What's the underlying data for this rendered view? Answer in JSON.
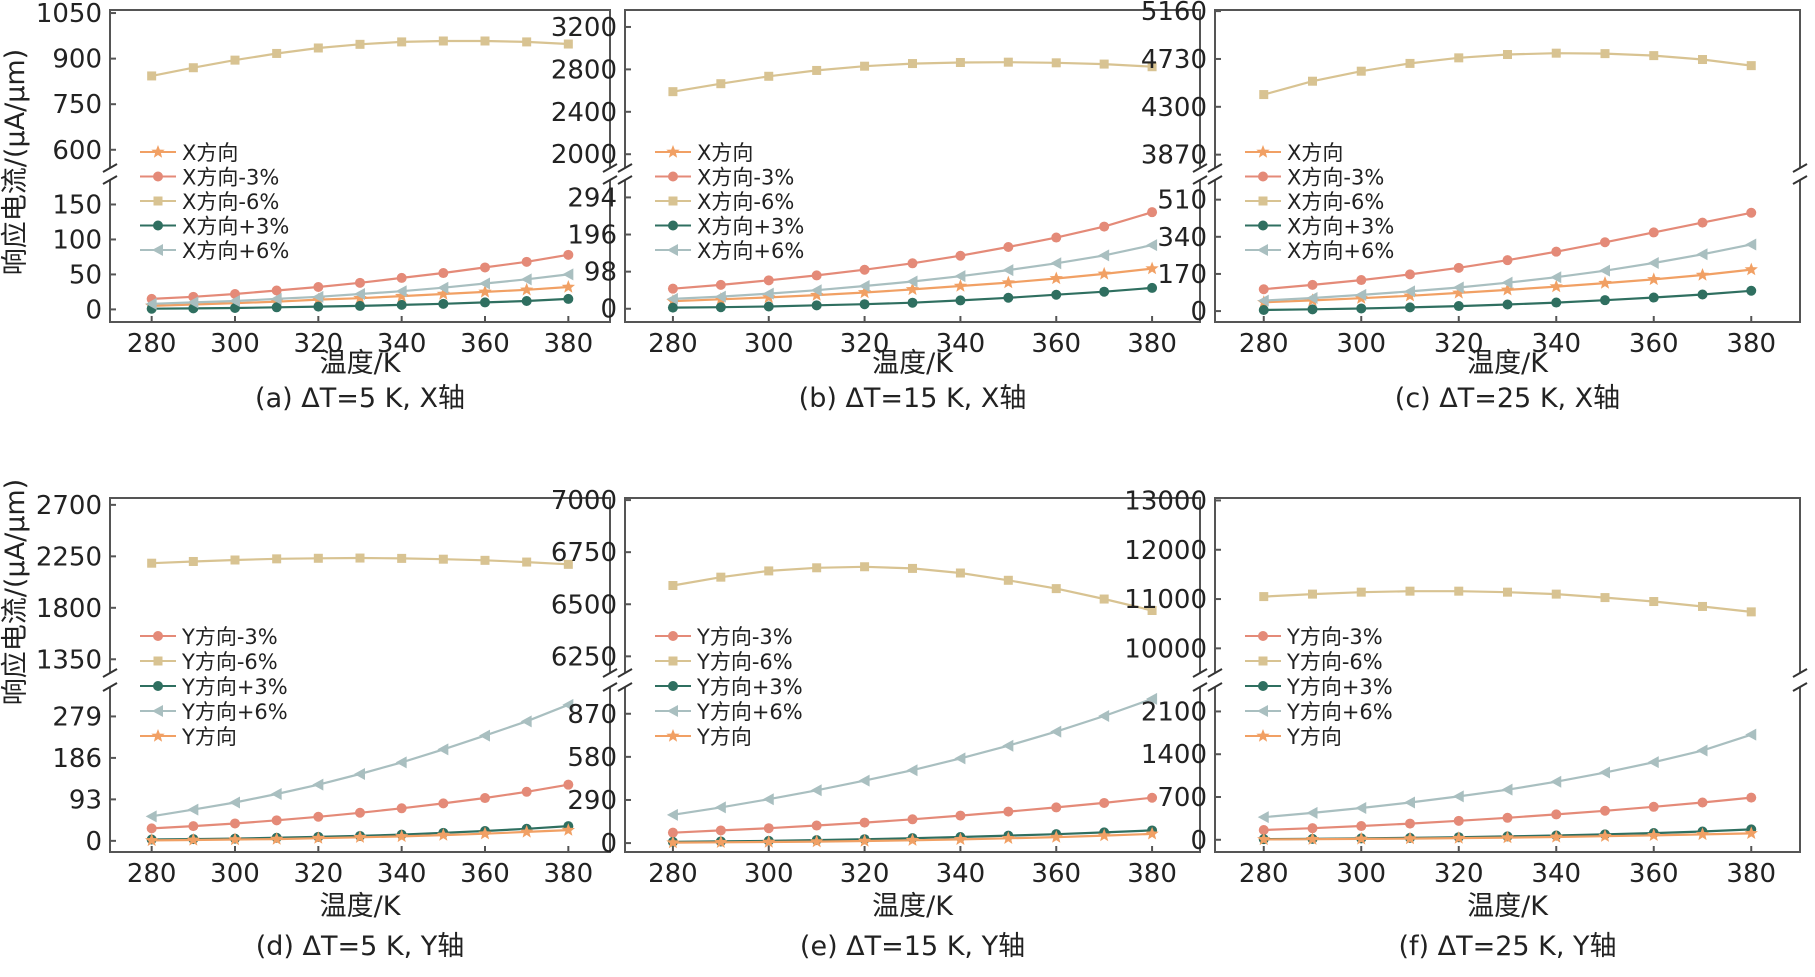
{
  "figure": {
    "ylabel_top": "响应电流/(μA/μm)",
    "ylabel_bottom": "响应电流/(μA/μm)",
    "xlabel": "温度/K"
  },
  "colors": {
    "base": "#f1a064",
    "minus3": "#e48a78",
    "minus6": "#d8c392",
    "plus3": "#2f6f60",
    "plus6": "#a9bfc0"
  },
  "chart_data": [
    {
      "type": "line",
      "caption": "(a) ΔT=5 K, X轴",
      "xlabel": "温度/K",
      "ylabel": "响应电流/(μA/μm)",
      "xlim": [
        270,
        390
      ],
      "x": [
        280,
        290,
        300,
        310,
        320,
        330,
        340,
        350,
        360,
        370,
        380
      ],
      "xticks": [
        280,
        300,
        320,
        340,
        360,
        380
      ],
      "y_break": true,
      "upper": {
        "ylim": [
          540,
          1060
        ],
        "yticks": [
          600,
          750,
          900,
          1050
        ]
      },
      "lower": {
        "ylim": [
          -18,
          185
        ],
        "yticks": [
          0,
          50,
          100,
          150
        ]
      },
      "legend_position": "middle-left",
      "series": [
        {
          "name": "X方向",
          "key": "base",
          "marker": "star",
          "panel": "lower",
          "values": [
            5,
            7,
            9,
            11,
            14,
            16,
            19,
            22,
            25,
            28,
            32
          ]
        },
        {
          "name": "X方向-3%",
          "key": "minus3",
          "marker": "circle",
          "panel": "lower",
          "values": [
            15,
            18,
            22,
            27,
            32,
            38,
            45,
            52,
            60,
            68,
            78
          ]
        },
        {
          "name": "X方向-6%",
          "key": "minus6",
          "marker": "square",
          "panel": "upper",
          "values": [
            843,
            870,
            895,
            917,
            935,
            947,
            955,
            958,
            958,
            955,
            948
          ]
        },
        {
          "name": "X方向+3%",
          "key": "plus3",
          "marker": "circle",
          "panel": "lower",
          "values": [
            1,
            1.5,
            2,
            3,
            4,
            5,
            6.5,
            8,
            10,
            12,
            15
          ]
        },
        {
          "name": "X方向+6%",
          "key": "plus6",
          "marker": "triangle",
          "panel": "lower",
          "values": [
            8,
            10,
            12,
            15,
            18,
            22,
            26,
            31,
            37,
            43,
            50
          ]
        }
      ]
    },
    {
      "type": "line",
      "caption": "(b) ΔT=15 K, X轴",
      "xlabel": "温度/K",
      "ylabel": "响应电流/(μA/μm)",
      "xlim": [
        270,
        390
      ],
      "x": [
        280,
        290,
        300,
        310,
        320,
        330,
        340,
        350,
        360,
        370,
        380
      ],
      "xticks": [
        280,
        300,
        320,
        340,
        360,
        380
      ],
      "y_break": true,
      "upper": {
        "ylim": [
          1870,
          3360
        ],
        "yticks": [
          2000,
          2400,
          2800,
          3200
        ]
      },
      "lower": {
        "ylim": [
          -35,
          340
        ],
        "yticks": [
          0,
          98,
          196,
          294
        ]
      },
      "legend_position": "middle-left",
      "series": [
        {
          "name": "X方向",
          "key": "base",
          "marker": "star",
          "panel": "lower",
          "values": [
            20,
            25,
            30,
            36,
            43,
            51,
            60,
            69,
            80,
            92,
            106
          ]
        },
        {
          "name": "X方向-3%",
          "key": "minus3",
          "marker": "circle",
          "panel": "lower",
          "values": [
            53,
            63,
            75,
            88,
            103,
            120,
            140,
            163,
            188,
            217,
            255
          ]
        },
        {
          "name": "X方向-6%",
          "key": "minus6",
          "marker": "square",
          "panel": "upper",
          "values": [
            2590,
            2665,
            2735,
            2790,
            2830,
            2855,
            2865,
            2868,
            2862,
            2850,
            2825
          ]
        },
        {
          "name": "X方向+3%",
          "key": "plus3",
          "marker": "circle",
          "panel": "lower",
          "values": [
            3,
            4,
            6,
            9,
            12,
            16,
            22,
            29,
            37,
            45,
            55
          ]
        },
        {
          "name": "X方向+6%",
          "key": "plus6",
          "marker": "triangle",
          "panel": "lower",
          "values": [
            26,
            32,
            40,
            49,
            60,
            72,
            86,
            102,
            120,
            141,
            168
          ]
        }
      ]
    },
    {
      "type": "line",
      "caption": "(c) ΔT=25 K, X轴",
      "xlabel": "温度/K",
      "ylabel": "响应电流/(μA/μm)",
      "xlim": [
        270,
        390
      ],
      "x": [
        280,
        290,
        300,
        310,
        320,
        330,
        340,
        350,
        360,
        370,
        380
      ],
      "xticks": [
        280,
        300,
        320,
        340,
        360,
        380
      ],
      "y_break": true,
      "upper": {
        "ylim": [
          3750,
          5170
        ],
        "yticks": [
          3870,
          4300,
          4730,
          5160
        ]
      },
      "lower": {
        "ylim": [
          -50,
          600
        ],
        "yticks": [
          0,
          170,
          340,
          510
        ]
      },
      "legend_position": "middle-left",
      "series": [
        {
          "name": "X方向",
          "key": "base",
          "marker": "star",
          "panel": "lower",
          "values": [
            40,
            49,
            59,
            70,
            83,
            97,
            112,
            128,
            145,
            165,
            190
          ]
        },
        {
          "name": "X方向-3%",
          "key": "minus3",
          "marker": "circle",
          "panel": "lower",
          "values": [
            100,
            120,
            142,
            168,
            198,
            233,
            272,
            315,
            360,
            405,
            450
          ]
        },
        {
          "name": "X方向-6%",
          "key": "minus6",
          "marker": "square",
          "panel": "upper",
          "values": [
            4410,
            4530,
            4620,
            4690,
            4740,
            4770,
            4782,
            4778,
            4760,
            4725,
            4670
          ]
        },
        {
          "name": "X方向+3%",
          "key": "plus3",
          "marker": "circle",
          "panel": "lower",
          "values": [
            5,
            8,
            12,
            17,
            23,
            30,
            39,
            50,
            62,
            76,
            93
          ]
        },
        {
          "name": "X方向+6%",
          "key": "plus6",
          "marker": "triangle",
          "panel": "lower",
          "values": [
            48,
            60,
            74,
            90,
            108,
            130,
            155,
            185,
            220,
            260,
            305
          ]
        }
      ]
    },
    {
      "type": "line",
      "caption": "(d) ΔT=5 K, Y轴",
      "xlabel": "温度/K",
      "ylabel": "响应电流/(μA/μm)",
      "xlim": [
        270,
        390
      ],
      "x": [
        280,
        290,
        300,
        310,
        320,
        330,
        340,
        350,
        360,
        370,
        380
      ],
      "xticks": [
        280,
        300,
        320,
        340,
        360,
        380
      ],
      "y_break": true,
      "upper": {
        "ylim": [
          1230,
          2760
        ],
        "yticks": [
          1350,
          1800,
          2250,
          2700
        ]
      },
      "lower": {
        "ylim": [
          -25,
          345
        ],
        "yticks": [
          0,
          93,
          186,
          279
        ]
      },
      "legend_position": "middle-left",
      "series": [
        {
          "name": "Y方向-3%",
          "key": "minus3",
          "marker": "circle",
          "panel": "lower",
          "values": [
            28,
            33,
            39,
            46,
            54,
            63,
            73,
            84,
            96,
            110,
            126
          ]
        },
        {
          "name": "Y方向-6%",
          "key": "minus6",
          "marker": "square",
          "panel": "upper",
          "values": [
            2190,
            2205,
            2218,
            2228,
            2233,
            2235,
            2232,
            2225,
            2215,
            2200,
            2180
          ]
        },
        {
          "name": "Y方向+3%",
          "key": "plus3",
          "marker": "circle",
          "panel": "lower",
          "values": [
            3,
            4,
            5,
            7,
            9,
            11,
            14,
            18,
            22,
            27,
            33
          ]
        },
        {
          "name": "Y方向+6%",
          "key": "plus6",
          "marker": "triangle",
          "panel": "lower",
          "values": [
            55,
            70,
            86,
            105,
            126,
            150,
            176,
            205,
            236,
            268,
            305
          ]
        },
        {
          "name": "Y方向",
          "key": "base",
          "marker": "star",
          "panel": "lower",
          "values": [
            1,
            2,
            3,
            4,
            6,
            8,
            10,
            13,
            16,
            20,
            24
          ]
        }
      ]
    },
    {
      "type": "line",
      "caption": "(e) ΔT=15 K, Y轴",
      "xlabel": "温度/K",
      "ylabel": "响应电流/(μA/μm)",
      "xlim": [
        270,
        390
      ],
      "x": [
        280,
        290,
        300,
        310,
        320,
        330,
        340,
        350,
        360,
        370,
        380
      ],
      "xticks": [
        280,
        300,
        320,
        340,
        360,
        380
      ],
      "y_break": true,
      "upper": {
        "ylim": [
          6170,
          7010
        ],
        "yticks": [
          6250,
          6500,
          6750,
          7000
        ]
      },
      "lower": {
        "ylim": [
          -60,
          1050
        ],
        "yticks": [
          0,
          290,
          580,
          870
        ]
      },
      "legend_position": "middle-left",
      "series": [
        {
          "name": "Y方向-3%",
          "key": "minus3",
          "marker": "circle",
          "panel": "lower",
          "values": [
            70,
            85,
            100,
            118,
            138,
            160,
            185,
            212,
            240,
            270,
            305
          ]
        },
        {
          "name": "Y方向-6%",
          "key": "minus6",
          "marker": "square",
          "panel": "upper",
          "values": [
            6590,
            6630,
            6660,
            6675,
            6680,
            6672,
            6650,
            6615,
            6575,
            6525,
            6470
          ]
        },
        {
          "name": "Y方向+3%",
          "key": "plus3",
          "marker": "circle",
          "panel": "lower",
          "values": [
            8,
            11,
            15,
            20,
            26,
            33,
            41,
            50,
            60,
            72,
            85
          ]
        },
        {
          "name": "Y方向+6%",
          "key": "plus6",
          "marker": "triangle",
          "panel": "lower",
          "values": [
            190,
            240,
            295,
            355,
            420,
            490,
            570,
            655,
            750,
            855,
            970
          ]
        },
        {
          "name": "Y方向",
          "key": "base",
          "marker": "star",
          "panel": "lower",
          "values": [
            3,
            5,
            7,
            10,
            14,
            19,
            25,
            32,
            40,
            50,
            62
          ]
        }
      ]
    },
    {
      "type": "line",
      "caption": "(f) ΔT=25 K, Y轴",
      "xlabel": "温度/K",
      "ylabel": "响应电流/(μA/μm)",
      "xlim": [
        270,
        390
      ],
      "x": [
        280,
        290,
        300,
        310,
        320,
        330,
        340,
        350,
        360,
        370,
        380
      ],
      "xticks": [
        280,
        300,
        320,
        340,
        360,
        380
      ],
      "y_break": true,
      "upper": {
        "ylim": [
          9500,
          13050
        ],
        "yticks": [
          10000,
          11000,
          12000,
          13000
        ]
      },
      "lower": {
        "ylim": [
          -200,
          2500
        ],
        "yticks": [
          0,
          700,
          1400,
          2100
        ]
      },
      "legend_position": "middle-left",
      "series": [
        {
          "name": "Y方向-3%",
          "key": "minus3",
          "marker": "circle",
          "panel": "lower",
          "values": [
            160,
            190,
            225,
            265,
            310,
            360,
            415,
            475,
            540,
            610,
            690
          ]
        },
        {
          "name": "Y方向-6%",
          "key": "minus6",
          "marker": "square",
          "panel": "upper",
          "values": [
            11050,
            11100,
            11140,
            11160,
            11160,
            11140,
            11100,
            11030,
            10950,
            10850,
            10740
          ]
        },
        {
          "name": "Y方向+3%",
          "key": "plus3",
          "marker": "circle",
          "panel": "lower",
          "values": [
            10,
            15,
            22,
            31,
            42,
            55,
            70,
            88,
            110,
            135,
            170
          ]
        },
        {
          "name": "Y方向+6%",
          "key": "plus6",
          "marker": "triangle",
          "panel": "lower",
          "values": [
            370,
            440,
            520,
            610,
            710,
            820,
            950,
            1100,
            1270,
            1460,
            1720
          ]
        },
        {
          "name": "Y方向",
          "key": "base",
          "marker": "star",
          "panel": "lower",
          "values": [
            5,
            9,
            14,
            20,
            27,
            36,
            46,
            58,
            72,
            88,
            105
          ]
        }
      ]
    }
  ]
}
